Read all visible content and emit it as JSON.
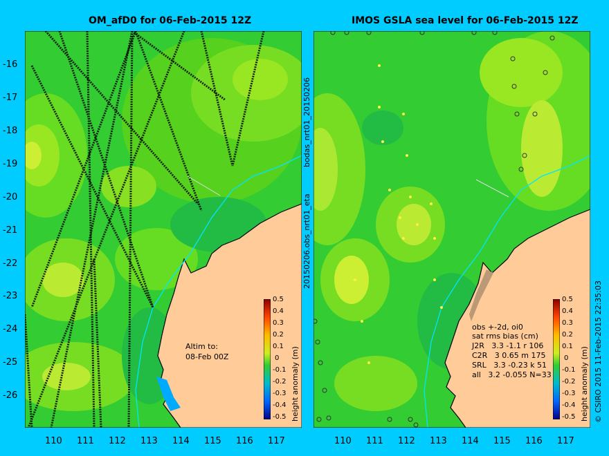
{
  "left_panel": {
    "title": "OM_afD0 for 06-Feb-2015 12Z",
    "annotation_line1": "Altim to:",
    "annotation_line2": "08-Feb 00Z",
    "side_label": "20150206.obs_nrt01_eta",
    "side_label_top": "bodas_nrt01_20150206"
  },
  "right_panel": {
    "title": "IMOS GSLA sea level  for 06-Feb-2015 12Z",
    "stats_title": "obs +-2d, oi0",
    "stats_header": "sat rms bias (cm)",
    "stats_rows": [
      "J2R   3.3 -1.1 r 106",
      "C2R   3 0.65 m 175",
      "SRL   3.3 -0.23 k 51",
      "all   3.2 -0.055 N=33"
    ],
    "credit": "© CSIRO 2015  11-Feb-2015 22:35:03"
  },
  "axes": {
    "x_ticks": [
      "110",
      "111",
      "112",
      "113",
      "114",
      "115",
      "116",
      "117"
    ],
    "y_ticks": [
      "-16",
      "-17",
      "-18",
      "-19",
      "-20",
      "-21",
      "-22",
      "-23",
      "-24",
      "-25",
      "-26"
    ]
  },
  "colorbar": {
    "label": "height anomaly (m)",
    "ticks": [
      "0.5",
      "0.4",
      "0.3",
      "0.2",
      "0.1",
      "0",
      "-0.1",
      "-0.2",
      "-0.3",
      "-0.4",
      "-0.5"
    ]
  },
  "colors": {
    "background": "#00ccff",
    "ocean_base": "#33cc33",
    "land": "#ffcc99",
    "coast_line": "#00e5ff"
  }
}
